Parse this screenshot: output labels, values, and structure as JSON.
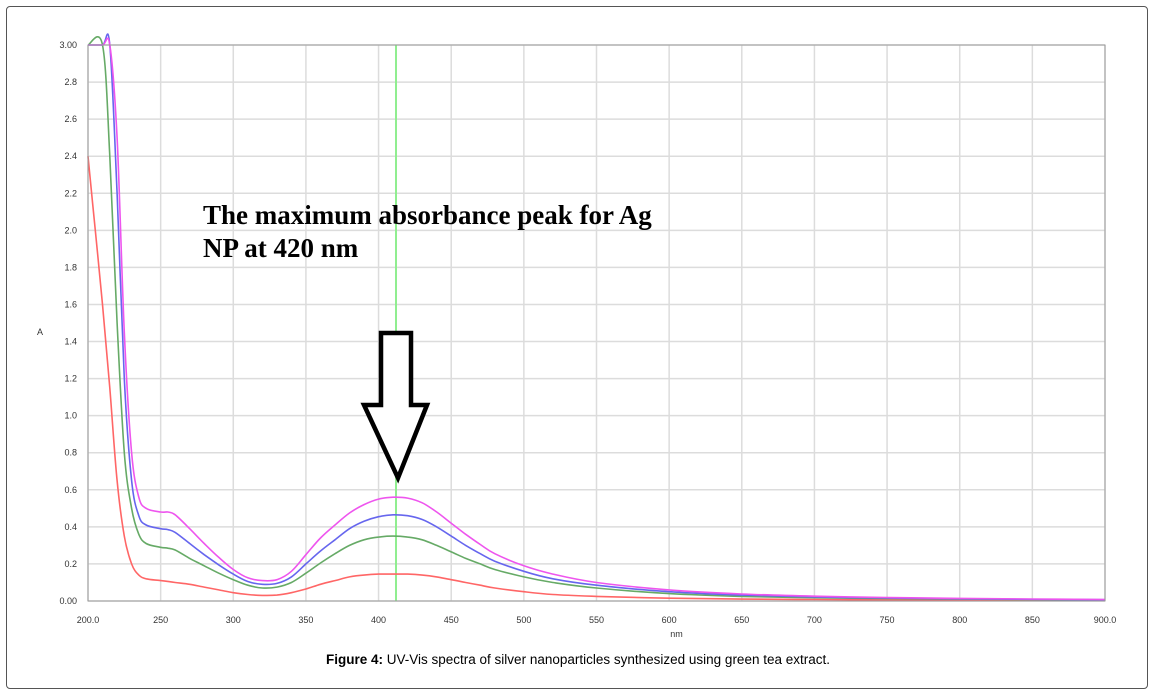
{
  "caption": {
    "label": "Figure 4:",
    "text": "UV-Vis spectra of silver nanoparticles synthesized using green tea extract."
  },
  "chart_data": {
    "type": "line",
    "title": "",
    "xlabel": "nm",
    "ylabel": "A",
    "xlim": [
      200,
      900
    ],
    "ylim": [
      0,
      3
    ],
    "x_ticks": [
      "200.0",
      "250",
      "300",
      "350",
      "400",
      "450",
      "500",
      "550",
      "600",
      "650",
      "700",
      "750",
      "800",
      "850",
      "900.0"
    ],
    "y_ticks": [
      "0.00",
      "0.2",
      "0.4",
      "0.6",
      "0.8",
      "1.0",
      "1.2",
      "1.4",
      "1.6",
      "1.8",
      "2.0",
      "2.2",
      "2.4",
      "2.6",
      "2.8",
      "3.00"
    ],
    "grid": true,
    "marker_line": {
      "x": 412,
      "color": "#90ee90"
    },
    "annotation": {
      "line1": "The maximum absorbance peak for Ag",
      "line2": "NP at 420 nm",
      "arrow_x": 412
    },
    "series": [
      {
        "color": "#ff6666",
        "x": [
          200,
          205,
          210,
          215,
          220,
          225,
          230,
          235,
          240,
          250,
          260,
          270,
          280,
          290,
          300,
          310,
          320,
          330,
          340,
          350,
          360,
          370,
          380,
          390,
          400,
          410,
          420,
          430,
          440,
          450,
          460,
          470,
          480,
          500,
          520,
          550,
          600,
          650,
          700,
          750,
          800,
          850,
          900
        ],
        "y": [
          2.4,
          2.0,
          1.6,
          1.15,
          0.65,
          0.35,
          0.2,
          0.14,
          0.12,
          0.11,
          0.1,
          0.09,
          0.075,
          0.06,
          0.045,
          0.035,
          0.03,
          0.032,
          0.045,
          0.065,
          0.09,
          0.11,
          0.13,
          0.14,
          0.145,
          0.145,
          0.145,
          0.14,
          0.13,
          0.115,
          0.1,
          0.085,
          0.07,
          0.05,
          0.035,
          0.025,
          0.015,
          0.01,
          0.008,
          0.006,
          0.005,
          0.004,
          0.003
        ]
      },
      {
        "color": "#66aa66",
        "x": [
          200,
          210,
          215,
          220,
          225,
          230,
          235,
          240,
          250,
          255,
          260,
          270,
          280,
          290,
          300,
          310,
          320,
          330,
          340,
          350,
          360,
          370,
          380,
          390,
          400,
          410,
          420,
          430,
          440,
          450,
          460,
          470,
          480,
          500,
          520,
          550,
          600,
          650,
          700,
          750,
          800,
          850,
          900
        ],
        "y": [
          3.0,
          3.0,
          2.4,
          1.5,
          0.8,
          0.5,
          0.36,
          0.31,
          0.29,
          0.285,
          0.275,
          0.23,
          0.19,
          0.15,
          0.115,
          0.085,
          0.07,
          0.075,
          0.1,
          0.15,
          0.205,
          0.255,
          0.3,
          0.33,
          0.345,
          0.35,
          0.345,
          0.33,
          0.3,
          0.265,
          0.23,
          0.2,
          0.17,
          0.13,
          0.1,
          0.07,
          0.04,
          0.025,
          0.018,
          0.013,
          0.01,
          0.008,
          0.006
        ]
      },
      {
        "color": "#6666ee",
        "x": [
          200,
          210,
          215,
          220,
          225,
          230,
          235,
          240,
          250,
          255,
          260,
          270,
          280,
          290,
          300,
          310,
          320,
          330,
          340,
          350,
          360,
          370,
          380,
          390,
          400,
          410,
          420,
          430,
          440,
          450,
          460,
          470,
          480,
          500,
          520,
          550,
          600,
          650,
          700,
          750,
          800,
          850,
          900
        ],
        "y": [
          3.0,
          3.0,
          3.0,
          2.2,
          1.2,
          0.65,
          0.46,
          0.41,
          0.39,
          0.385,
          0.37,
          0.31,
          0.25,
          0.195,
          0.145,
          0.105,
          0.09,
          0.095,
          0.13,
          0.2,
          0.27,
          0.33,
          0.39,
          0.43,
          0.455,
          0.465,
          0.46,
          0.44,
          0.4,
          0.35,
          0.3,
          0.255,
          0.215,
          0.16,
          0.12,
          0.085,
          0.05,
          0.032,
          0.022,
          0.016,
          0.012,
          0.009,
          0.007
        ]
      },
      {
        "color": "#ee55ee",
        "x": [
          200,
          210,
          215,
          220,
          225,
          230,
          235,
          240,
          250,
          255,
          260,
          270,
          280,
          290,
          300,
          310,
          320,
          330,
          340,
          350,
          360,
          370,
          380,
          390,
          400,
          410,
          420,
          430,
          440,
          450,
          460,
          470,
          480,
          500,
          520,
          550,
          600,
          650,
          700,
          750,
          800,
          850,
          900
        ],
        "y": [
          3.0,
          3.0,
          3.0,
          2.5,
          1.45,
          0.8,
          0.56,
          0.5,
          0.48,
          0.48,
          0.465,
          0.39,
          0.31,
          0.235,
          0.17,
          0.125,
          0.11,
          0.115,
          0.16,
          0.25,
          0.34,
          0.41,
          0.475,
          0.52,
          0.55,
          0.56,
          0.555,
          0.53,
          0.48,
          0.42,
          0.36,
          0.305,
          0.255,
          0.19,
          0.145,
          0.1,
          0.06,
          0.038,
          0.026,
          0.019,
          0.014,
          0.011,
          0.008
        ]
      }
    ]
  }
}
